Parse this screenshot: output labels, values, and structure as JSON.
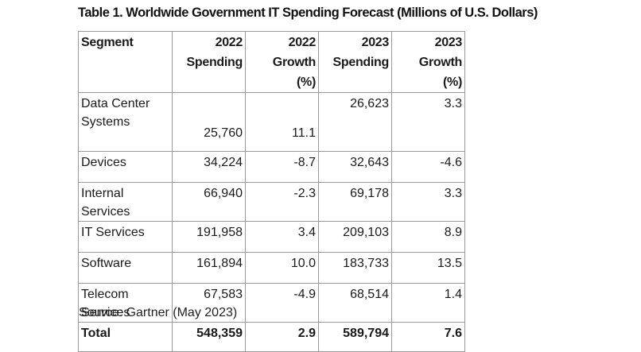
{
  "title": "Table 1. Worldwide Government IT Spending Forecast (Millions of U.S. Dollars)",
  "table": {
    "headers": [
      {
        "line1": "Segment",
        "line2": ""
      },
      {
        "line1": "2022",
        "line2": "Spending"
      },
      {
        "line1": "2022 Growth",
        "line2": "(%)"
      },
      {
        "line1": "2023",
        "line2": "Spending"
      },
      {
        "line1": "2023 Growth",
        "line2": "(%)"
      }
    ],
    "rows": [
      {
        "segment": "Data Center Systems",
        "spend2022": "25,760",
        "growth2022": "11.1",
        "spend2023": "26,623",
        "growth2023": "3.3"
      },
      {
        "segment": "Devices",
        "spend2022": "34,224",
        "growth2022": "-8.7",
        "spend2023": "32,643",
        "growth2023": "-4.6"
      },
      {
        "segment": "Internal Services",
        "spend2022": "66,940",
        "growth2022": "-2.3",
        "spend2023": "69,178",
        "growth2023": "3.3"
      },
      {
        "segment": "IT Services",
        "spend2022": "191,958",
        "growth2022": "3.4",
        "spend2023": "209,103",
        "growth2023": "8.9"
      },
      {
        "segment": "Software",
        "spend2022": "161,894",
        "growth2022": "10.0",
        "spend2023": "183,733",
        "growth2023": "13.5"
      },
      {
        "segment": "Telecom Services",
        "spend2022": "67,583",
        "growth2022": "-4.9",
        "spend2023": "68,514",
        "growth2023": "1.4"
      }
    ],
    "total": {
      "segment": "Total",
      "spend2022": "548,359",
      "growth2022": "2.9",
      "spend2023": "589,794",
      "growth2023": "7.6"
    }
  },
  "source": "Source: Gartner (May 2023)"
}
